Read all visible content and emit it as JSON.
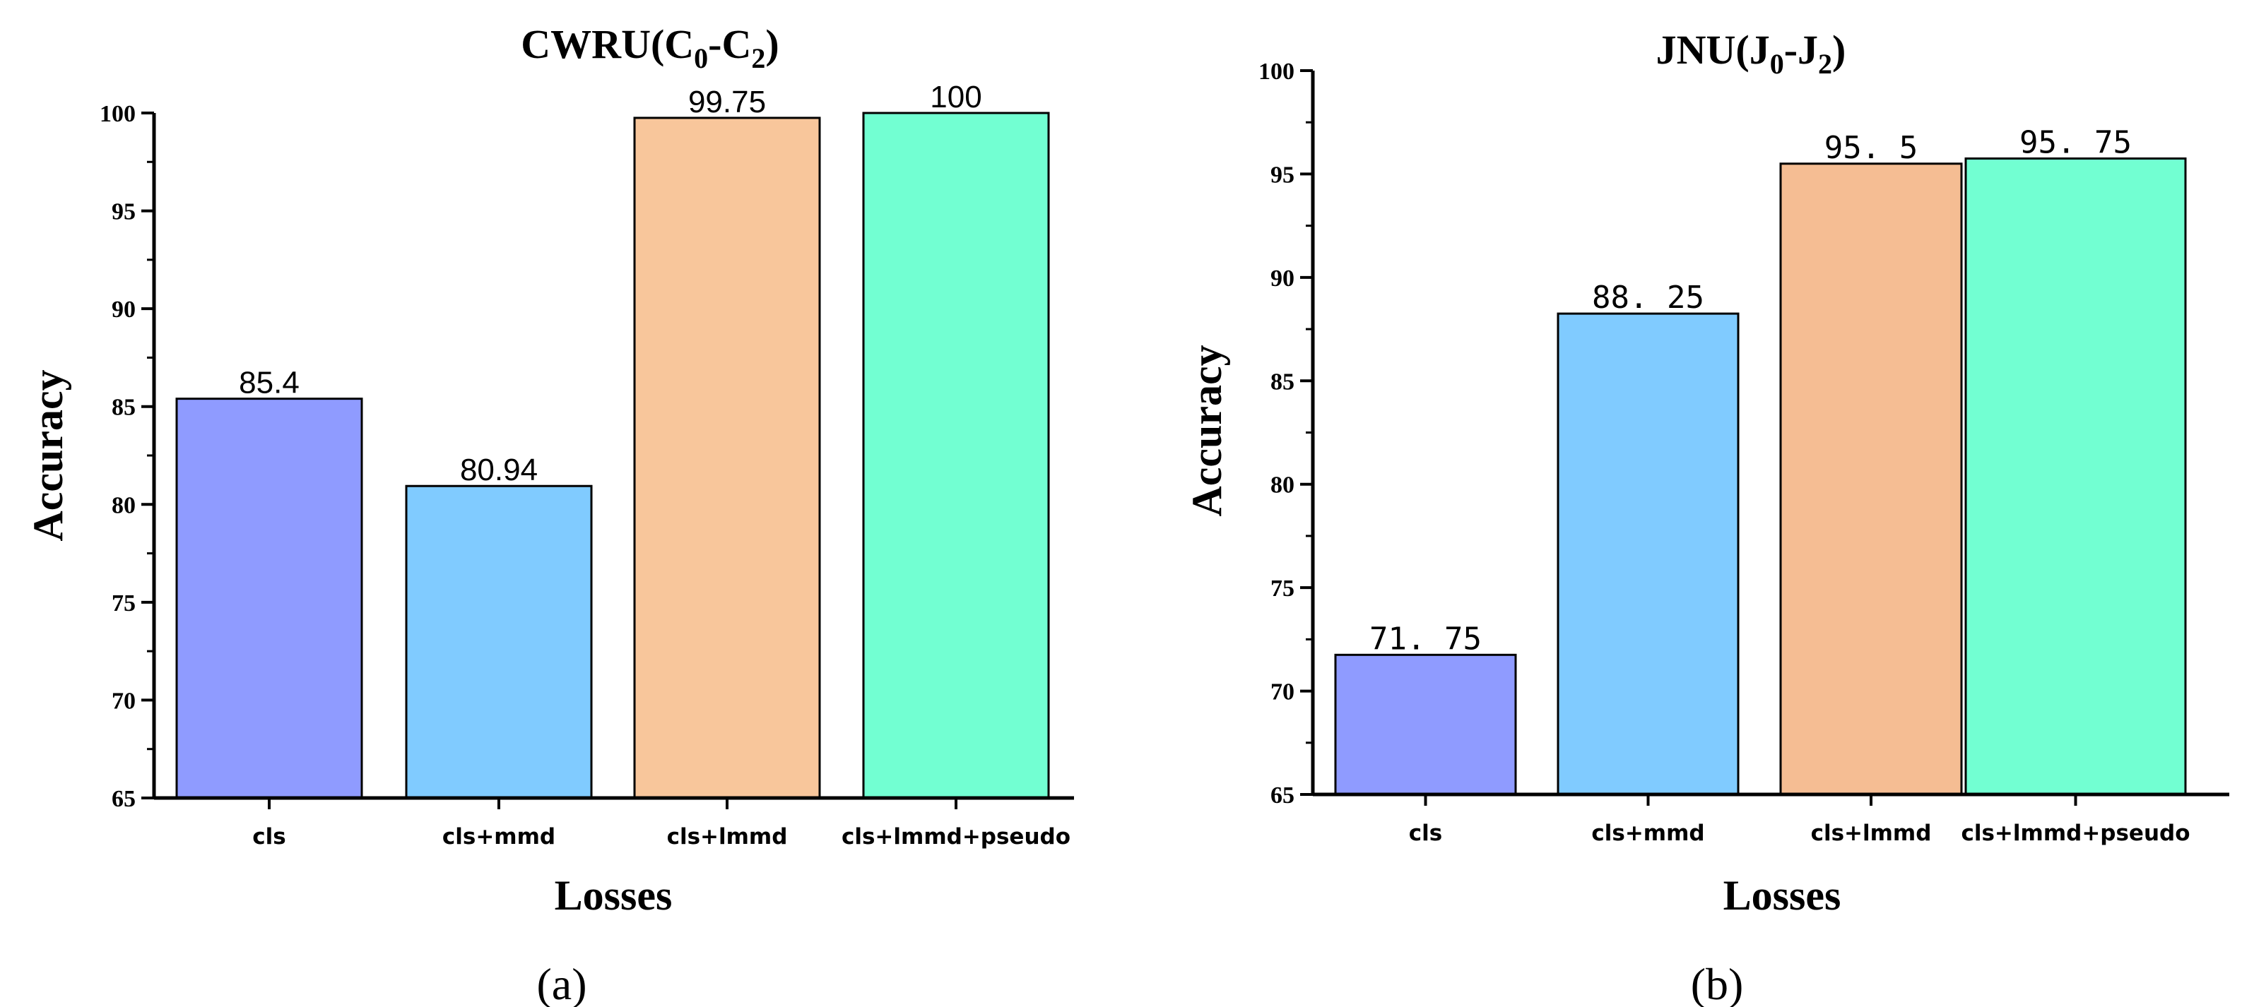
{
  "colors": {
    "bar_cls": "#8f9bff",
    "bar_cls_mmd": "#80cbff",
    "bar_cls_lmmd_a": "#f8c69b",
    "bar_cls_lmmd_b": "#f5bd93",
    "bar_pseudo": "#72ffd2",
    "axis": "#000000"
  },
  "chart_data": [
    {
      "type": "bar",
      "panel_caption": "(a)",
      "title": {
        "main": "CWRU(C",
        "sub1": "0",
        "mid": "-C",
        "sub2": "2",
        "end": ")"
      },
      "xlabel": "Losses",
      "ylabel": "Accuracy",
      "ylim": [
        65,
        100
      ],
      "yticks": [
        "65",
        "70",
        "75",
        "80",
        "85",
        "90",
        "95",
        "100"
      ],
      "ytick_values": [
        65,
        70,
        75,
        80,
        85,
        90,
        95,
        100
      ],
      "categories": [
        "cls",
        "cls+mmd",
        "cls+lmmd",
        "cls+lmmd+pseudo"
      ],
      "values": [
        85.4,
        80.94,
        99.75,
        100
      ],
      "value_labels": [
        "85.4",
        "80.94",
        "99.75",
        "100"
      ],
      "bar_colors": [
        "#8f9bff",
        "#80cbff",
        "#f8c69b",
        "#72ffd2"
      ]
    },
    {
      "type": "bar",
      "panel_caption": "(b)",
      "title": {
        "main": "JNU(J",
        "sub1": "0",
        "mid": "-J",
        "sub2": "2",
        "end": ")"
      },
      "xlabel": "Losses",
      "ylabel": "Accuracy",
      "ylim": [
        65,
        100
      ],
      "yticks": [
        "65",
        "70",
        "75",
        "80",
        "85",
        "90",
        "95",
        "100"
      ],
      "ytick_values": [
        65,
        70,
        75,
        80,
        85,
        90,
        95,
        100
      ],
      "categories": [
        "cls",
        "cls+mmd",
        "cls+lmmd",
        "cls+lmmd+pseudo"
      ],
      "values": [
        71.75,
        88.25,
        95.5,
        95.75
      ],
      "value_labels": [
        "71. 75",
        "88. 25",
        "95. 5",
        "95. 75"
      ],
      "bar_colors": [
        "#8f9bff",
        "#80cbff",
        "#f5bd93",
        "#72ffd2"
      ]
    }
  ]
}
